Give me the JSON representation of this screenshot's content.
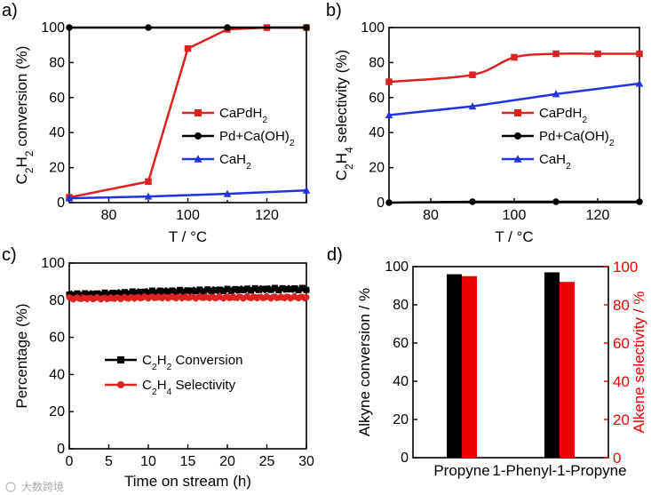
{
  "charts": [
    {
      "id": "a",
      "panel_label": "a)",
      "type": "line",
      "ylabel_parts": [
        "C",
        "2",
        "H",
        "2",
        " conversion (%)"
      ],
      "xlabel": "T / °C",
      "xlim": [
        70,
        130
      ],
      "ylim": [
        0,
        100
      ],
      "xticks": [
        80,
        100,
        120
      ],
      "yticks": [
        0,
        20,
        40,
        60,
        80,
        100
      ],
      "series": [
        {
          "name": "CaPdH2",
          "legend": [
            "CaPdH",
            "2",
            ""
          ],
          "color": "#dd2222",
          "marker": "square",
          "smooth": false,
          "x": [
            70,
            90,
            100,
            110,
            120,
            130
          ],
          "y": [
            3,
            12,
            88,
            99,
            100,
            100
          ]
        },
        {
          "name": "Pd+Ca(OH)2",
          "legend": [
            "Pd+Ca(OH)",
            "2",
            ""
          ],
          "color": "#000000",
          "marker": "circle",
          "smooth": false,
          "x": [
            70,
            90,
            110,
            130
          ],
          "y": [
            100,
            100,
            100,
            100
          ]
        },
        {
          "name": "CaH2",
          "legend": [
            "CaH",
            "2",
            ""
          ],
          "color": "#2233dd",
          "marker": "triangle",
          "smooth": false,
          "x": [
            70,
            90,
            110,
            130
          ],
          "y": [
            2.5,
            3.5,
            5,
            7
          ]
        }
      ]
    },
    {
      "id": "b",
      "panel_label": "b)",
      "type": "line",
      "ylabel_parts": [
        "C",
        "2",
        "H",
        "4",
        " selectivity (%)"
      ],
      "xlabel": "T / °C",
      "xlim": [
        70,
        130
      ],
      "ylim": [
        0,
        100
      ],
      "xticks": [
        80,
        100,
        120
      ],
      "yticks": [
        0,
        20,
        40,
        60,
        80,
        100
      ],
      "series": [
        {
          "name": "CaPdH2",
          "legend": [
            "CaPdH",
            "2",
            ""
          ],
          "color": "#dd2222",
          "marker": "square",
          "smooth": true,
          "x": [
            70,
            90,
            100,
            110,
            120,
            130
          ],
          "y": [
            69,
            73,
            83,
            85,
            85,
            85
          ]
        },
        {
          "name": "Pd+Ca(OH)2",
          "legend": [
            "Pd+Ca(OH)",
            "2",
            ""
          ],
          "color": "#000000",
          "marker": "circle",
          "smooth": false,
          "x": [
            70,
            90,
            110,
            130
          ],
          "y": [
            0,
            0.5,
            0.5,
            0.5
          ]
        },
        {
          "name": "CaH2",
          "legend": [
            "CaH",
            "2",
            ""
          ],
          "color": "#2233dd",
          "marker": "triangle",
          "smooth": false,
          "x": [
            70,
            90,
            110,
            130
          ],
          "y": [
            50,
            55,
            62,
            68
          ]
        }
      ]
    },
    {
      "id": "c",
      "panel_label": "c)",
      "type": "line",
      "ylabel_parts": [
        "Percentage (%)"
      ],
      "xlabel": "Time on stream (h)",
      "xlim": [
        0,
        30
      ],
      "ylim": [
        0,
        100
      ],
      "xticks": [
        0,
        5,
        10,
        15,
        20,
        25,
        30
      ],
      "yticks": [
        0,
        20,
        40,
        60,
        80,
        100
      ],
      "series": [
        {
          "name": "C2H2 Conversion",
          "legend": [
            "C",
            "2",
            "H",
            "2",
            " Conversion"
          ],
          "color": "#000000",
          "marker": "square",
          "dense": true,
          "x": [
            0,
            5,
            10,
            15,
            20,
            25,
            30
          ],
          "y": [
            83,
            83.5,
            84.5,
            85,
            85.5,
            86,
            86
          ]
        },
        {
          "name": "C2H4 Selectivity",
          "legend": [
            "C",
            "2",
            "H",
            "4",
            " Selectivity"
          ],
          "color": "#dd2222",
          "marker": "circle",
          "dense": true,
          "x": [
            0,
            5,
            10,
            15,
            20,
            25,
            30
          ],
          "y": [
            81,
            81,
            81.5,
            81.5,
            81.5,
            81.5,
            81.5
          ]
        }
      ]
    },
    {
      "id": "d",
      "panel_label": "d)",
      "type": "bar",
      "ylabel_left": "Alkyne conversion / %",
      "ylabel_right": "Alkene selectivity / %",
      "ylim": [
        0,
        100
      ],
      "yticks": [
        0,
        20,
        40,
        60,
        80,
        100
      ],
      "categories": [
        "Propyne",
        "1-Phenyl-1-Propyne"
      ],
      "series": [
        {
          "name": "Alkyne conversion",
          "color": "#000000",
          "values": [
            96,
            97
          ]
        },
        {
          "name": "Alkene selectivity",
          "color": "#ee0000",
          "values": [
            95,
            92
          ]
        }
      ]
    }
  ],
  "watermark": "大数跨境"
}
